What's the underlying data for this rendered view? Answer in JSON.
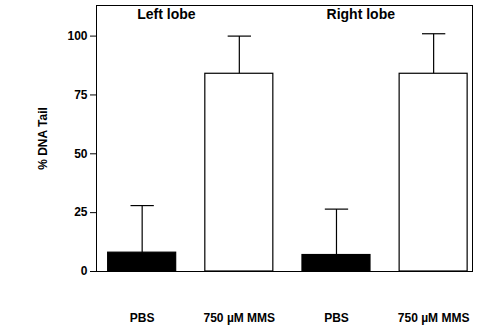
{
  "chart_data": {
    "type": "bar",
    "y_label": "% DNA Tail",
    "annotations": [
      "Left lobe",
      "Right lobe"
    ],
    "categories": [
      "PBS",
      "750 µM MMS",
      "PBS",
      "750 µM MMS"
    ],
    "values": [
      8,
      84,
      7,
      84
    ],
    "errors": [
      20,
      16,
      19.5,
      17
    ],
    "colors": [
      "#000000",
      "#ffffff",
      "#000000",
      "#ffffff"
    ],
    "ylim": [
      0,
      113
    ],
    "yticks": [
      0,
      25,
      50,
      75,
      100
    ],
    "grid": false
  }
}
